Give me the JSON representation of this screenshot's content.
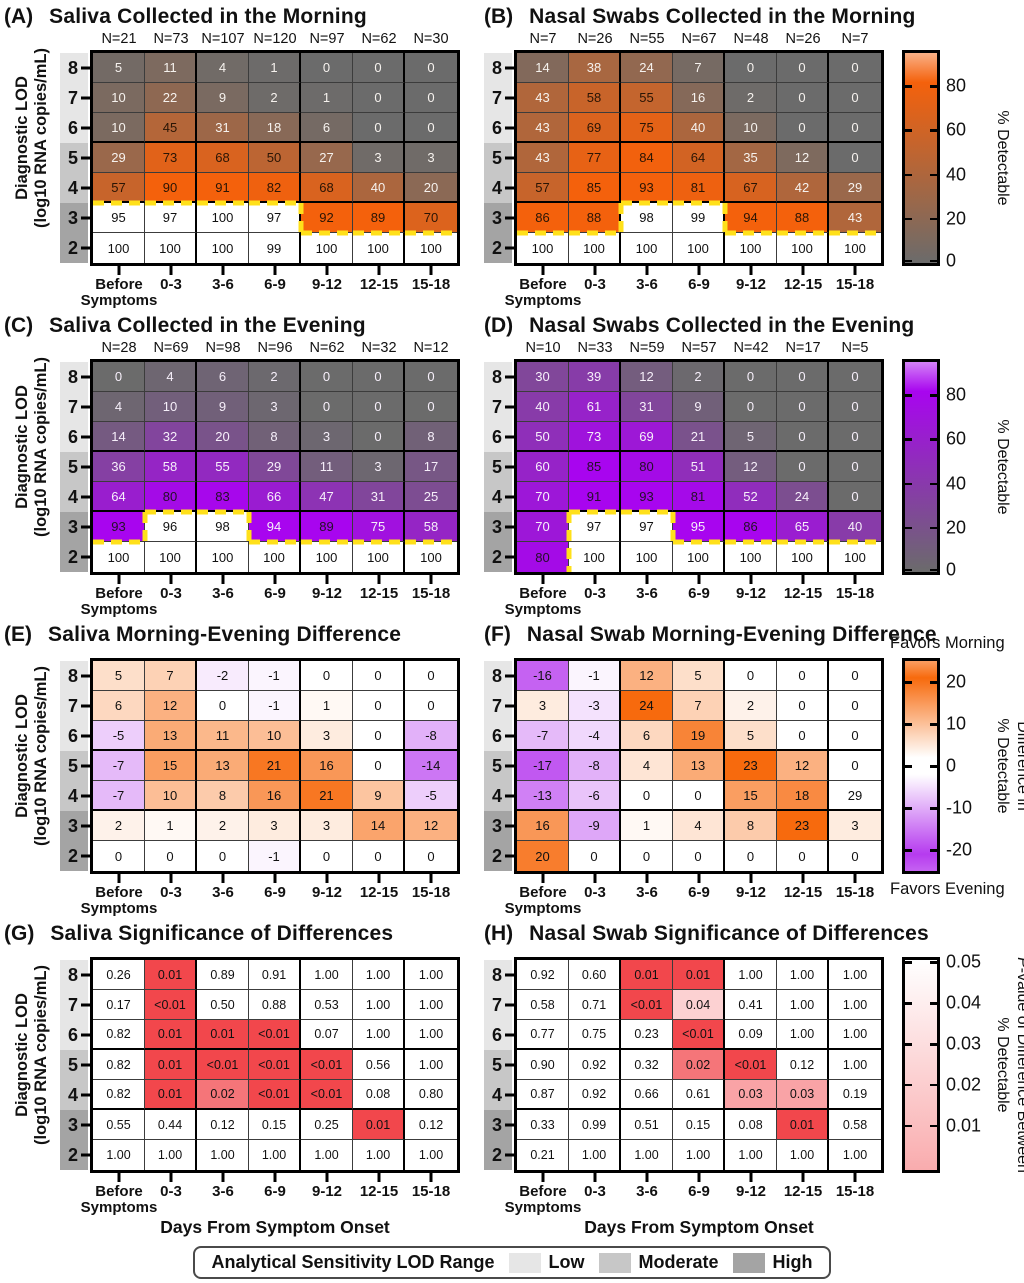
{
  "figure": {
    "legend": {
      "title": "Analytical Sensitivity LOD Range",
      "items": [
        {
          "label": "Low",
          "color": "#E6E6E6"
        },
        {
          "label": "Moderate",
          "color": "#C7C7C7"
        },
        {
          "label": "High",
          "color": "#A4A4A4"
        }
      ]
    }
  },
  "shared": {
    "row_labels": [
      "8",
      "7",
      "6",
      "5",
      "4",
      "3",
      "2"
    ],
    "col_labels": [
      [
        "Before",
        "Symptoms"
      ],
      [
        "0-3"
      ],
      [
        "3-6"
      ],
      [
        "6-9"
      ],
      [
        "9-12"
      ],
      [
        "12-15"
      ],
      [
        "15-18"
      ]
    ],
    "ylabel_lines": [
      "Diagnostic LOD",
      "(log10 RNA copies/mL)"
    ],
    "xaxis_title": "Days From Symptom Onset"
  },
  "colors": {
    "pct_orange": "#F4610C",
    "pct_purple": "#A805EF",
    "neutral_gray": "#6B6B6B",
    "diverging_orange": "#F76A0D",
    "diverging_purple": "#B63BEF",
    "significance_red": "#F2474C",
    "contour_yellow": "#FFE01A",
    "band_low": "#E6E6E6",
    "band_moderate": "#C7C7C7",
    "band_high": "#A4A4A4",
    "grid_line": "#3C3C3C"
  },
  "chart_data": [
    {
      "key": "A",
      "panel_label": "(A)",
      "title": "Saliva Collected in the Morning",
      "type": "heatmap",
      "side": "left",
      "colormap": "pct_orange",
      "n_labels": [
        "N=21",
        "N=73",
        "N=107",
        "N=120",
        "N=97",
        "N=62",
        "N=30"
      ],
      "values": [
        [
          "5",
          "11",
          "4",
          "1",
          "0",
          "0",
          "0"
        ],
        [
          "10",
          "22",
          "9",
          "2",
          "1",
          "0",
          "0"
        ],
        [
          "10",
          "45",
          "31",
          "18",
          "6",
          "0",
          "0"
        ],
        [
          "29",
          "73",
          "68",
          "50",
          "27",
          "3",
          "3"
        ],
        [
          "57",
          "90",
          "91",
          "82",
          "68",
          "40",
          "20"
        ],
        [
          "95",
          "97",
          "100",
          "97",
          "92",
          "89",
          "70"
        ],
        [
          "100",
          "100",
          "100",
          "99",
          "100",
          "100",
          "100"
        ]
      ],
      "white_cells": [
        [
          5,
          0
        ],
        [
          5,
          1
        ],
        [
          5,
          2
        ],
        [
          5,
          3
        ],
        [
          6,
          0
        ],
        [
          6,
          1
        ],
        [
          6,
          2
        ],
        [
          6,
          3
        ],
        [
          6,
          4
        ],
        [
          6,
          5
        ],
        [
          6,
          6
        ]
      ],
      "yellow_dashed_contour_levels": [
        5,
        5,
        5,
        5,
        6,
        6,
        6
      ],
      "colorbar": null,
      "xaxis_title": false
    },
    {
      "key": "B",
      "panel_label": "(B)",
      "title": "Nasal Swabs Collected in the Morning",
      "type": "heatmap",
      "side": "right",
      "colormap": "pct_orange",
      "n_labels": [
        "N=7",
        "N=26",
        "N=55",
        "N=67",
        "N=48",
        "N=26",
        "N=7"
      ],
      "values": [
        [
          "14",
          "38",
          "24",
          "7",
          "0",
          "0",
          "0"
        ],
        [
          "43",
          "58",
          "55",
          "16",
          "2",
          "0",
          "0"
        ],
        [
          "43",
          "69",
          "75",
          "40",
          "10",
          "0",
          "0"
        ],
        [
          "43",
          "77",
          "84",
          "64",
          "35",
          "12",
          "0"
        ],
        [
          "57",
          "85",
          "93",
          "81",
          "67",
          "42",
          "29"
        ],
        [
          "86",
          "88",
          "98",
          "99",
          "94",
          "88",
          "43"
        ],
        [
          "100",
          "100",
          "100",
          "100",
          "100",
          "100",
          "100"
        ]
      ],
      "white_cells": [
        [
          5,
          2
        ],
        [
          5,
          3
        ],
        [
          6,
          0
        ],
        [
          6,
          1
        ],
        [
          6,
          2
        ],
        [
          6,
          3
        ],
        [
          6,
          4
        ],
        [
          6,
          5
        ],
        [
          6,
          6
        ]
      ],
      "yellow_dashed_contour_levels": [
        6,
        6,
        5,
        5,
        6,
        6,
        6
      ],
      "colorbar": {
        "type": "pct",
        "ticks": {
          "labels": [
            "80",
            "60",
            "40",
            "20",
            "0"
          ],
          "positions": [
            15.8,
            36.8,
            57.9,
            78.9,
            99
          ]
        },
        "label_lines": [
          "% Detectable"
        ]
      },
      "xaxis_title": false
    },
    {
      "key": "C",
      "panel_label": "(C)",
      "title": "Saliva Collected in the Evening",
      "type": "heatmap",
      "side": "left",
      "colormap": "pct_purple",
      "n_labels": [
        "N=28",
        "N=69",
        "N=98",
        "N=96",
        "N=62",
        "N=32",
        "N=12"
      ],
      "values": [
        [
          "0",
          "4",
          "6",
          "2",
          "0",
          "0",
          "0"
        ],
        [
          "4",
          "10",
          "9",
          "3",
          "0",
          "0",
          "0"
        ],
        [
          "14",
          "32",
          "20",
          "8",
          "3",
          "0",
          "8"
        ],
        [
          "36",
          "58",
          "55",
          "29",
          "11",
          "3",
          "17"
        ],
        [
          "64",
          "80",
          "83",
          "66",
          "47",
          "31",
          "25"
        ],
        [
          "93",
          "96",
          "98",
          "94",
          "89",
          "75",
          "58"
        ],
        [
          "100",
          "100",
          "100",
          "100",
          "100",
          "100",
          "100"
        ]
      ],
      "white_cells": [
        [
          5,
          1
        ],
        [
          5,
          2
        ],
        [
          6,
          0
        ],
        [
          6,
          1
        ],
        [
          6,
          2
        ],
        [
          6,
          3
        ],
        [
          6,
          4
        ],
        [
          6,
          5
        ],
        [
          6,
          6
        ]
      ],
      "yellow_dashed_contour_levels": [
        6,
        5,
        5,
        6,
        6,
        6,
        6
      ],
      "colorbar": null,
      "xaxis_title": false
    },
    {
      "key": "D",
      "panel_label": "(D)",
      "title": "Nasal Swabs Collected in the Evening",
      "type": "heatmap",
      "side": "right",
      "colormap": "pct_purple",
      "n_labels": [
        "N=10",
        "N=33",
        "N=59",
        "N=57",
        "N=42",
        "N=17",
        "N=5"
      ],
      "values": [
        [
          "30",
          "39",
          "12",
          "2",
          "0",
          "0",
          "0"
        ],
        [
          "40",
          "61",
          "31",
          "9",
          "0",
          "0",
          "0"
        ],
        [
          "50",
          "73",
          "69",
          "21",
          "5",
          "0",
          "0"
        ],
        [
          "60",
          "85",
          "80",
          "51",
          "12",
          "0",
          "0"
        ],
        [
          "70",
          "91",
          "93",
          "81",
          "52",
          "24",
          "0"
        ],
        [
          "70",
          "97",
          "97",
          "95",
          "86",
          "65",
          "40"
        ],
        [
          "80",
          "100",
          "100",
          "100",
          "100",
          "100",
          "100"
        ]
      ],
      "white_cells": [
        [
          5,
          1
        ],
        [
          5,
          2
        ],
        [
          6,
          1
        ],
        [
          6,
          2
        ],
        [
          6,
          3
        ],
        [
          6,
          4
        ],
        [
          6,
          5
        ],
        [
          6,
          6
        ]
      ],
      "yellow_dashed_contour_levels": [
        7,
        5,
        5,
        6,
        6,
        6,
        6
      ],
      "colorbar": {
        "type": "pct",
        "ticks": {
          "labels": [
            "80",
            "60",
            "40",
            "20",
            "0"
          ],
          "positions": [
            15.8,
            36.8,
            57.9,
            78.9,
            99
          ]
        },
        "label_lines": [
          "% Detectable"
        ]
      },
      "xaxis_title": false
    },
    {
      "key": "E",
      "panel_label": "(E)",
      "title": "Saliva Morning-Evening Difference",
      "type": "heatmap",
      "side": "left",
      "colormap": "diverging",
      "n_labels": null,
      "values": [
        [
          "5",
          "7",
          "-2",
          "-1",
          "0",
          "0",
          "0"
        ],
        [
          "6",
          "12",
          "0",
          "-1",
          "1",
          "0",
          "0"
        ],
        [
          "-5",
          "13",
          "11",
          "10",
          "3",
          "0",
          "-8"
        ],
        [
          "-7",
          "15",
          "13",
          "21",
          "16",
          "0",
          "-14"
        ],
        [
          "-7",
          "10",
          "8",
          "16",
          "21",
          "9",
          "-5"
        ],
        [
          "2",
          "1",
          "2",
          "3",
          "3",
          "14",
          "12"
        ],
        [
          "0",
          "0",
          "0",
          "-1",
          "0",
          "0",
          "0"
        ]
      ],
      "white_cells": [],
      "yellow_dashed_contour_levels": null,
      "colorbar": null,
      "xaxis_title": false
    },
    {
      "key": "F",
      "panel_label": "(F)",
      "title": "Nasal Swab Morning-Evening Difference",
      "type": "heatmap",
      "side": "right",
      "colormap": "diverging",
      "n_labels": null,
      "values": [
        [
          "-16",
          "-1",
          "12",
          "5",
          "0",
          "0",
          "0"
        ],
        [
          "3",
          "-3",
          "24",
          "7",
          "2",
          "0",
          "0"
        ],
        [
          "-7",
          "-4",
          "6",
          "19",
          "5",
          "0",
          "0"
        ],
        [
          "-17",
          "-8",
          "4",
          "13",
          "23",
          "12",
          "0"
        ],
        [
          "-13",
          "-6",
          "0",
          "0",
          "15",
          "18",
          "29"
        ],
        [
          "16",
          "-9",
          "1",
          "4",
          "8",
          "23",
          "3"
        ],
        [
          "20",
          "0",
          "0",
          "0",
          "0",
          "0",
          "0"
        ]
      ],
      "white_cells": [
        [
          4,
          6
        ]
      ],
      "yellow_dashed_contour_levels": null,
      "colorbar": {
        "type": "div",
        "ticks": {
          "labels": [
            "20",
            "10",
            "0",
            "-10",
            "-20"
          ],
          "positions": [
            10,
            30,
            50,
            70,
            90
          ]
        },
        "label_lines": [
          "Difference in",
          "% Detectable"
        ],
        "top_label": "Favors Morning",
        "bottom_label": "Favors Evening"
      },
      "xaxis_title": false
    },
    {
      "key": "G",
      "panel_label": "(G)",
      "title": "Saliva Significance of Differences",
      "type": "heatmap",
      "side": "left",
      "colormap": "pvalue",
      "n_labels": null,
      "values": [
        [
          "0.26",
          "0.01",
          "0.89",
          "0.91",
          "1.00",
          "1.00",
          "1.00"
        ],
        [
          "0.17",
          "<0.01",
          "0.50",
          "0.88",
          "0.53",
          "1.00",
          "1.00"
        ],
        [
          "0.82",
          "0.01",
          "0.01",
          "<0.01",
          "0.07",
          "1.00",
          "1.00"
        ],
        [
          "0.82",
          "0.01",
          "<0.01",
          "<0.01",
          "<0.01",
          "0.56",
          "1.00"
        ],
        [
          "0.82",
          "0.01",
          "0.02",
          "<0.01",
          "<0.01",
          "0.08",
          "0.80"
        ],
        [
          "0.55",
          "0.44",
          "0.12",
          "0.15",
          "0.25",
          "0.01",
          "0.12"
        ],
        [
          "1.00",
          "1.00",
          "1.00",
          "1.00",
          "1.00",
          "1.00",
          "1.00"
        ]
      ],
      "white_cells": [],
      "yellow_dashed_contour_levels": null,
      "colorbar": null,
      "xaxis_title": true
    },
    {
      "key": "H",
      "panel_label": "(H)",
      "title": "Nasal Swab Significance of Differences",
      "type": "heatmap",
      "side": "right",
      "colormap": "pvalue",
      "n_labels": null,
      "values": [
        [
          "0.92",
          "0.60",
          "0.01",
          "0.01",
          "1.00",
          "1.00",
          "1.00"
        ],
        [
          "0.58",
          "0.71",
          "<0.01",
          "0.04",
          "0.41",
          "1.00",
          "1.00"
        ],
        [
          "0.77",
          "0.75",
          "0.23",
          "<0.01",
          "0.09",
          "1.00",
          "1.00"
        ],
        [
          "0.90",
          "0.92",
          "0.32",
          "0.02",
          "<0.01",
          "0.12",
          "1.00"
        ],
        [
          "0.87",
          "0.92",
          "0.66",
          "0.61",
          "0.03",
          "0.03",
          "0.19"
        ],
        [
          "0.33",
          "0.99",
          "0.51",
          "0.15",
          "0.08",
          "0.01",
          "0.58"
        ],
        [
          "0.21",
          "1.00",
          "1.00",
          "1.00",
          "1.00",
          "1.00",
          "1.00"
        ]
      ],
      "white_cells": [],
      "yellow_dashed_contour_levels": null,
      "colorbar": {
        "type": "pval",
        "ticks": {
          "labels": [
            "0.05",
            "0.04",
            "0.03",
            "0.02",
            "0.01"
          ],
          "positions": [
            1,
            20.5,
            40,
            59.5,
            79
          ]
        },
        "label_lines": [
          "P-value of Difference Between",
          "% Detectable"
        ]
      },
      "xaxis_title": true
    }
  ]
}
